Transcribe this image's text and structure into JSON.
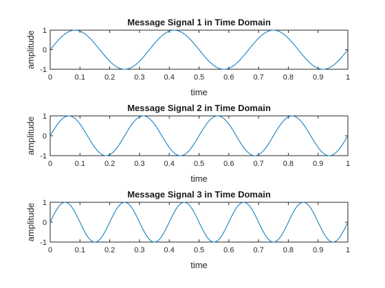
{
  "chart_data": [
    {
      "type": "line",
      "title": "Message Signal 1 in Time Domain",
      "xlabel": "time",
      "ylabel": "amplitude",
      "xlim": [
        0,
        1
      ],
      "ylim": [
        -1,
        1
      ],
      "xticks": [
        "0",
        "0.1",
        "0.2",
        "0.3",
        "0.4",
        "0.5",
        "0.6",
        "0.7",
        "0.8",
        "0.9",
        "1"
      ],
      "yticks": [
        "1",
        "0",
        "-1"
      ],
      "series": [
        {
          "function": "sin(2*pi*f*t)",
          "frequency_hz": 3,
          "amplitude": 1,
          "t_start": 0,
          "t_end": 1,
          "color": "#0072bd"
        }
      ]
    },
    {
      "type": "line",
      "title": "Message Signal 2 in Time Domain",
      "xlabel": "time",
      "ylabel": "amplitude",
      "xlim": [
        0,
        1
      ],
      "ylim": [
        -1,
        1
      ],
      "xticks": [
        "0",
        "0.1",
        "0.2",
        "0.3",
        "0.4",
        "0.5",
        "0.6",
        "0.7",
        "0.8",
        "0.9",
        "1"
      ],
      "yticks": [
        "1",
        "0",
        "-1"
      ],
      "series": [
        {
          "function": "sin(2*pi*f*t)",
          "frequency_hz": 4,
          "amplitude": 1,
          "t_start": 0,
          "t_end": 1,
          "color": "#0072bd"
        }
      ]
    },
    {
      "type": "line",
      "title": "Message Signal 3 in Time Domain",
      "xlabel": "time",
      "ylabel": "amplitude",
      "xlim": [
        0,
        1
      ],
      "ylim": [
        -1,
        1
      ],
      "xticks": [
        "0",
        "0.1",
        "0.2",
        "0.3",
        "0.4",
        "0.5",
        "0.6",
        "0.7",
        "0.8",
        "0.9",
        "1"
      ],
      "yticks": [
        "1",
        "0",
        "-1"
      ],
      "series": [
        {
          "function": "sin(2*pi*f*t)",
          "frequency_hz": 5,
          "amplitude": 1,
          "t_start": 0,
          "t_end": 1,
          "color": "#0072bd"
        }
      ]
    }
  ]
}
